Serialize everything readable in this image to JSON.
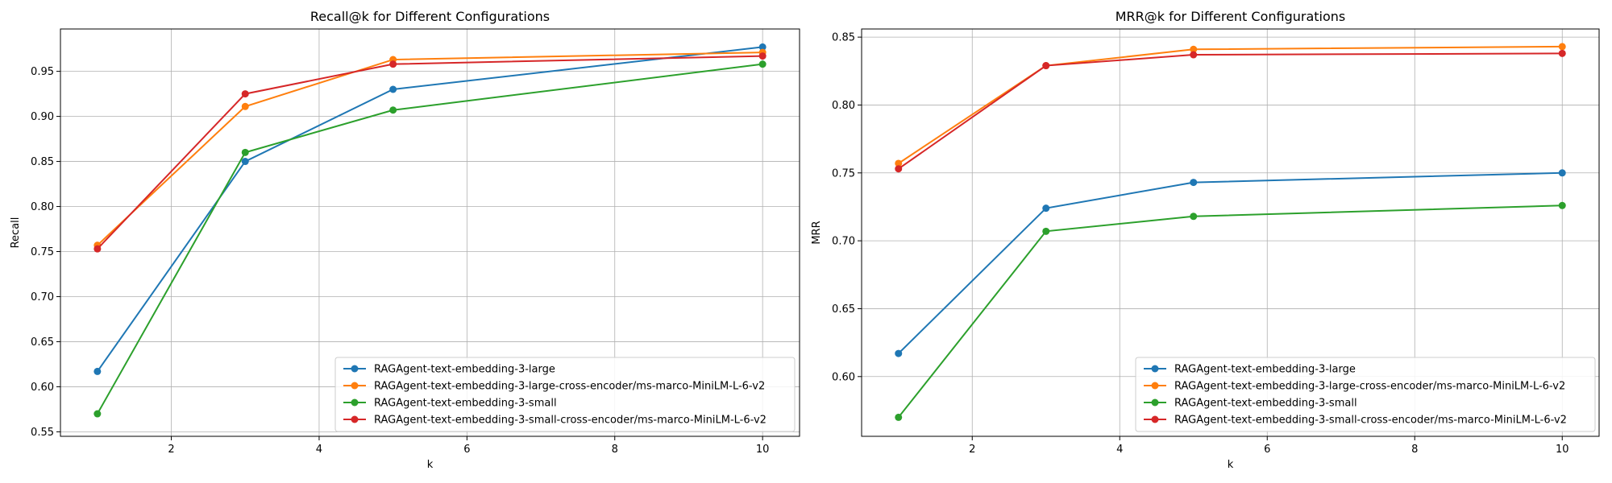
{
  "colors": {
    "series": [
      "#1f77b4",
      "#ff7f0e",
      "#2ca02c",
      "#d62728"
    ],
    "grid": "#b0b0b0",
    "axis": "#000000"
  },
  "chart_data": [
    {
      "type": "line",
      "title": "Recall@k for Different Configurations",
      "xlabel": "k",
      "ylabel": "Recall",
      "x": [
        1,
        3,
        5,
        10
      ],
      "xlim": [
        0.5,
        10.5
      ],
      "ylim": [
        0.545,
        0.997
      ],
      "xticks": [
        2,
        4,
        6,
        8,
        10
      ],
      "xtick_labels": [
        "2",
        "4",
        "6",
        "8",
        "10"
      ],
      "yticks": [
        0.55,
        0.6,
        0.65,
        0.7,
        0.75,
        0.8,
        0.85,
        0.9,
        0.95
      ],
      "ytick_labels": [
        "0.55",
        "0.60",
        "0.65",
        "0.70",
        "0.75",
        "0.80",
        "0.85",
        "0.90",
        "0.95"
      ],
      "grid": true,
      "legend_position": "lower-right",
      "series": [
        {
          "name": "RAGAgent-text-embedding-3-large",
          "values": [
            0.617,
            0.85,
            0.93,
            0.977
          ]
        },
        {
          "name": "RAGAgent-text-embedding-3-large-cross-encoder/ms-marco-MiniLM-L-6-v2",
          "values": [
            0.757,
            0.911,
            0.963,
            0.971
          ]
        },
        {
          "name": "RAGAgent-text-embedding-3-small",
          "values": [
            0.57,
            0.86,
            0.907,
            0.958
          ]
        },
        {
          "name": "RAGAgent-text-embedding-3-small-cross-encoder/ms-marco-MiniLM-L-6-v2",
          "values": [
            0.753,
            0.925,
            0.958,
            0.967
          ]
        }
      ]
    },
    {
      "type": "line",
      "title": "MRR@k for Different Configurations",
      "xlabel": "k",
      "ylabel": "MRR",
      "x": [
        1,
        3,
        5,
        10
      ],
      "xlim": [
        0.5,
        10.5
      ],
      "ylim": [
        0.556,
        0.856
      ],
      "xticks": [
        2,
        4,
        6,
        8,
        10
      ],
      "xtick_labels": [
        "2",
        "4",
        "6",
        "8",
        "10"
      ],
      "yticks": [
        0.6,
        0.65,
        0.7,
        0.75,
        0.8,
        0.85
      ],
      "ytick_labels": [
        "0.60",
        "0.65",
        "0.70",
        "0.75",
        "0.80",
        "0.85"
      ],
      "grid": true,
      "legend_position": "lower-right",
      "series": [
        {
          "name": "RAGAgent-text-embedding-3-large",
          "values": [
            0.617,
            0.724,
            0.743,
            0.75
          ]
        },
        {
          "name": "RAGAgent-text-embedding-3-large-cross-encoder/ms-marco-MiniLM-L-6-v2",
          "values": [
            0.757,
            0.829,
            0.841,
            0.843
          ]
        },
        {
          "name": "RAGAgent-text-embedding-3-small",
          "values": [
            0.57,
            0.707,
            0.718,
            0.726
          ]
        },
        {
          "name": "RAGAgent-text-embedding-3-small-cross-encoder/ms-marco-MiniLM-L-6-v2",
          "values": [
            0.753,
            0.829,
            0.837,
            0.838
          ]
        }
      ]
    }
  ]
}
